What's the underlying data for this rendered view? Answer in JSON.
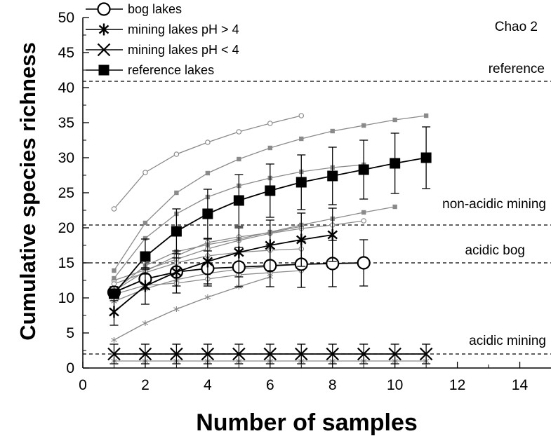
{
  "chart_data": {
    "type": "line",
    "title": "Chao 2",
    "xlabel": "Number of samples",
    "ylabel": "Cumulative species richness",
    "xlim": [
      0,
      15
    ],
    "ylim": [
      0,
      50
    ],
    "xticks": [
      0,
      2,
      4,
      6,
      8,
      10,
      12,
      14
    ],
    "yticks": [
      0,
      5,
      10,
      15,
      20,
      25,
      30,
      35,
      40,
      45,
      50
    ],
    "grid": false,
    "legend_position": "top-left",
    "legend": [
      {
        "label": "bog lakes",
        "marker": "circle-open"
      },
      {
        "label": "mining lakes pH > 4",
        "marker": "asterisk"
      },
      {
        "label": "mining lakes pH < 4",
        "marker": "x"
      },
      {
        "label": "reference lakes",
        "marker": "square-filled"
      }
    ],
    "reference_lines": [
      {
        "label": "reference",
        "y": 40.9
      },
      {
        "label": "non-acidic mining",
        "y": 20.4
      },
      {
        "label": "acidic bog",
        "y": 15.0
      },
      {
        "label": "acidic mining",
        "y": 2.0
      }
    ],
    "colors": {
      "mean": "#000000",
      "individual": "#8a8a8a"
    },
    "mean_series": [
      {
        "name": "bog lakes",
        "marker": "circle-open",
        "x": [
          1,
          2,
          3,
          4,
          5,
          6,
          7,
          8,
          9
        ],
        "y": [
          10.8,
          12.7,
          13.7,
          14.2,
          14.4,
          14.6,
          14.8,
          14.9,
          15.0
        ],
        "err": [
          0.8,
          1.4,
          2.0,
          2.5,
          2.8,
          3.0,
          3.3,
          3.3,
          3.3
        ]
      },
      {
        "name": "mining lakes pH > 4",
        "marker": "asterisk",
        "x": [
          1,
          2,
          3,
          4,
          5,
          6,
          7,
          8
        ],
        "y": [
          8.0,
          11.7,
          13.7,
          15.2,
          16.5,
          17.5,
          18.3,
          19.0
        ],
        "err": [
          1.9,
          2.6,
          3.0,
          3.2,
          3.5,
          3.6,
          3.8,
          3.8
        ]
      },
      {
        "name": "mining lakes pH < 4",
        "marker": "x",
        "x": [
          1,
          2,
          3,
          4,
          5,
          6,
          7,
          8,
          9,
          10,
          11
        ],
        "y": [
          2.0,
          2.0,
          2.0,
          2.0,
          2.0,
          2.0,
          2.0,
          2.0,
          2.0,
          2.0,
          2.0
        ],
        "err": [
          1.4,
          1.4,
          1.4,
          1.4,
          1.4,
          1.4,
          1.4,
          1.4,
          1.4,
          1.4,
          1.4
        ]
      },
      {
        "name": "reference lakes",
        "marker": "square-filled",
        "x": [
          1,
          2,
          3,
          4,
          5,
          6,
          7,
          8,
          9,
          10,
          11
        ],
        "y": [
          10.6,
          15.9,
          19.5,
          22.0,
          23.9,
          25.3,
          26.5,
          27.4,
          28.3,
          29.2,
          30.0
        ],
        "err": [
          1.0,
          2.5,
          3.2,
          3.5,
          3.7,
          3.8,
          3.9,
          4.1,
          4.2,
          4.3,
          4.4
        ]
      }
    ],
    "individual_series": [
      {
        "marker": "circle-small",
        "x": [
          1,
          2,
          3,
          4,
          5,
          6,
          7
        ],
        "y": [
          22.7,
          27.9,
          30.5,
          32.2,
          33.7,
          34.9,
          36.0
        ]
      },
      {
        "marker": "circle-small",
        "x": [
          1,
          2,
          3,
          4,
          5,
          6,
          7,
          8,
          9
        ],
        "y": [
          12.5,
          14.0,
          15.5,
          17.0,
          18.2,
          19.2,
          19.9,
          20.4,
          21.0
        ]
      },
      {
        "marker": "circle-small",
        "x": [
          1,
          2,
          3,
          4,
          5,
          6,
          7
        ],
        "y": [
          11.0,
          13.8,
          16.0,
          17.9,
          18.7,
          19.3,
          20.2
        ]
      },
      {
        "marker": "circle-small",
        "x": [
          1,
          2,
          3,
          4,
          5,
          6,
          7
        ],
        "y": [
          12.0,
          13.6,
          15.0,
          16.0,
          16.5,
          16.8,
          17.0
        ]
      },
      {
        "marker": "circle-small",
        "x": [
          1,
          2,
          3,
          4,
          5,
          6,
          7
        ],
        "y": [
          10.5,
          11.8,
          12.1,
          12.7,
          13.3,
          13.6,
          13.9
        ]
      },
      {
        "marker": "square-small",
        "x": [
          1,
          2,
          3,
          4,
          5,
          6,
          7,
          8,
          9,
          10,
          11
        ],
        "y": [
          13.9,
          20.7,
          25.0,
          27.8,
          29.8,
          31.4,
          32.7,
          33.8,
          34.6,
          35.4,
          36.0
        ]
      },
      {
        "marker": "square-small",
        "x": [
          1,
          2,
          3,
          4,
          5,
          6,
          7,
          8,
          9
        ],
        "y": [
          12.8,
          18.5,
          22.0,
          24.4,
          26.0,
          27.1,
          28.0,
          28.6,
          29.0
        ]
      },
      {
        "marker": "square-small",
        "x": [
          1,
          2,
          3,
          4,
          5,
          6,
          7,
          8,
          9,
          10
        ],
        "y": [
          11.0,
          14.6,
          16.6,
          17.6,
          18.4,
          19.4,
          20.4,
          21.3,
          22.2,
          23.0
        ]
      },
      {
        "marker": "asterisk-small",
        "x": [
          1,
          2,
          3,
          4,
          5,
          6
        ],
        "y": [
          4.0,
          6.4,
          8.4,
          10.1,
          11.6,
          13.0
        ]
      },
      {
        "marker": "asterisk-small",
        "x": [
          1,
          2,
          3,
          4,
          5,
          6,
          7
        ],
        "y": [
          9.5,
          11.3,
          12.6,
          13.5,
          14.1,
          14.5,
          14.8
        ]
      },
      {
        "marker": "asterisk-small",
        "x": [
          1,
          2,
          3,
          4,
          5,
          6,
          7,
          8,
          9,
          10,
          11
        ],
        "y": [
          1.0,
          1.0,
          1.0,
          1.0,
          1.0,
          1.0,
          1.0,
          1.0,
          1.0,
          1.0,
          1.0
        ]
      }
    ]
  }
}
